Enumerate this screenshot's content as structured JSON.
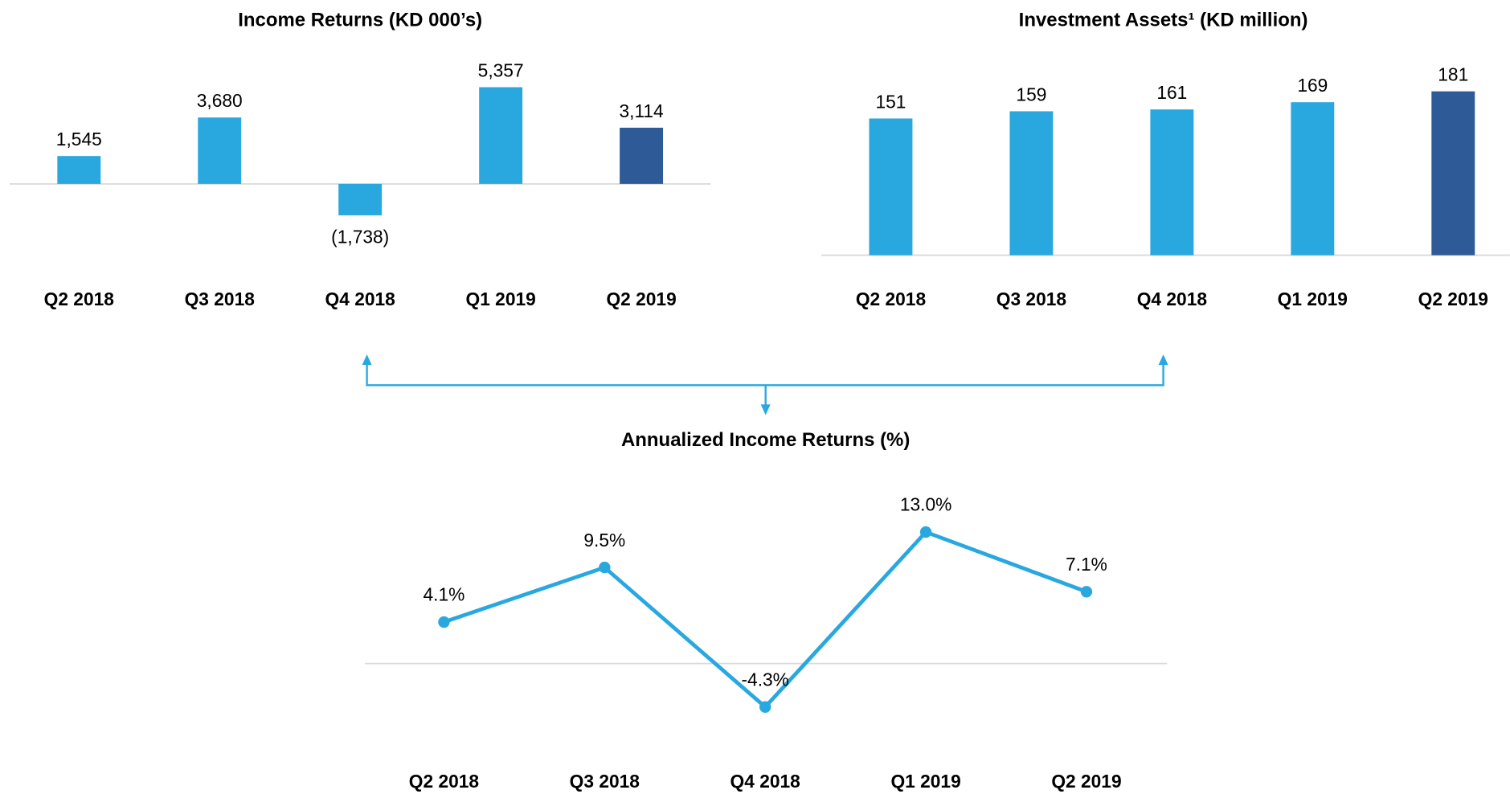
{
  "chart_data": [
    {
      "type": "bar",
      "title": "Income Returns (KD 000’s)",
      "categories": [
        "Q2 2018",
        "Q3 2018",
        "Q4 2018",
        "Q1 2019",
        "Q2 2019"
      ],
      "values": [
        1545,
        3680,
        -1738,
        5357,
        3114
      ],
      "value_labels": [
        "1,545",
        "3,680",
        "(1,738)",
        "5,357",
        "3,114"
      ],
      "colors": [
        "#29a8e0",
        "#29a8e0",
        "#29a8e0",
        "#29a8e0",
        "#2e5a97"
      ],
      "ylim": [
        -4000,
        8000
      ]
    },
    {
      "type": "bar",
      "title": "Investment Assets¹ (KD million)",
      "categories": [
        "Q2 2018",
        "Q3 2018",
        "Q4 2018",
        "Q1 2019",
        "Q2 2019"
      ],
      "values": [
        151,
        159,
        161,
        169,
        181
      ],
      "value_labels": [
        "151",
        "159",
        "161",
        "169",
        "181"
      ],
      "colors": [
        "#29a8e0",
        "#29a8e0",
        "#29a8e0",
        "#29a8e0",
        "#2e5a97"
      ],
      "ylim": [
        0,
        200
      ]
    },
    {
      "type": "line",
      "title": "Annualized Income Returns (%)",
      "categories": [
        "Q2 2018",
        "Q3 2018",
        "Q4 2018",
        "Q1 2019",
        "Q2 2019"
      ],
      "values": [
        4.1,
        9.5,
        -4.3,
        13.0,
        7.1
      ],
      "value_labels": [
        "4.1%",
        "9.5%",
        "-4.3%",
        "13.0%",
        "7.1%"
      ],
      "color": "#29a8e0",
      "ylim": [
        -6,
        16
      ]
    }
  ]
}
